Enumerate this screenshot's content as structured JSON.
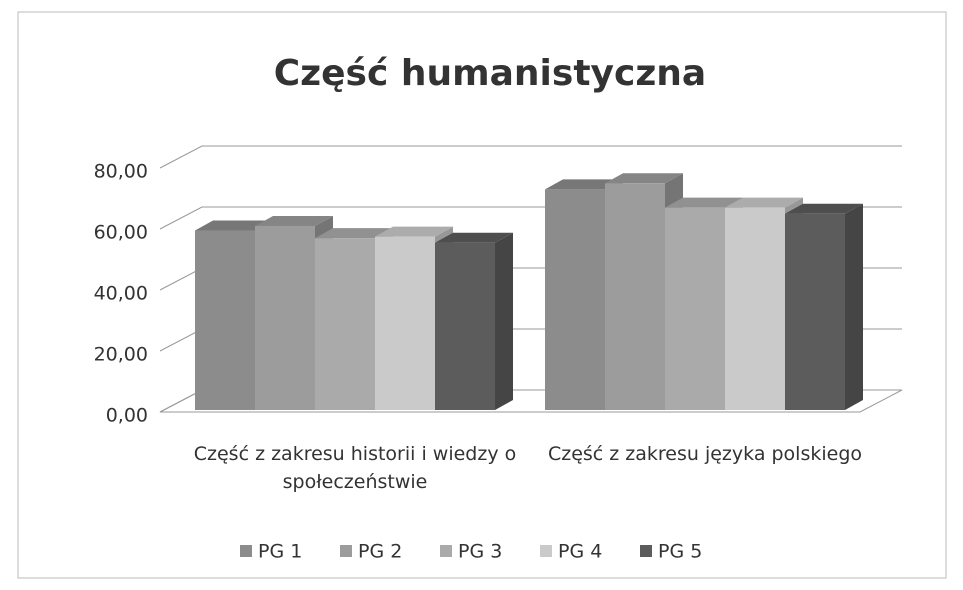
{
  "chart_data": {
    "type": "bar3d",
    "title": "Część humanistyczna",
    "categories": [
      "Część z zakresu historii i wiedzy o społeczeństwie",
      "Część z zakresu języka polskiego"
    ],
    "series": [
      {
        "name": "PG 1",
        "color": "#8c8c8c",
        "values": [
          59.5,
          73
        ]
      },
      {
        "name": "PG 2",
        "color": "#9c9c9c",
        "values": [
          61,
          75
        ]
      },
      {
        "name": "PG 3",
        "color": "#aaaaaa",
        "values": [
          57,
          67
        ]
      },
      {
        "name": "PG 4",
        "color": "#cacaca",
        "values": [
          57.5,
          67
        ]
      },
      {
        "name": "PG 5",
        "color": "#5c5c5c",
        "values": [
          55.5,
          65
        ]
      }
    ],
    "ylim": [
      0,
      80
    ],
    "yticks": [
      {
        "value": 0,
        "label": "0,00"
      },
      {
        "value": 20,
        "label": "20,00"
      },
      {
        "value": 40,
        "label": "40,00"
      },
      {
        "value": 60,
        "label": "60,00"
      },
      {
        "value": 80,
        "label": "80,00"
      }
    ],
    "grid": true,
    "legend": "bottom"
  }
}
